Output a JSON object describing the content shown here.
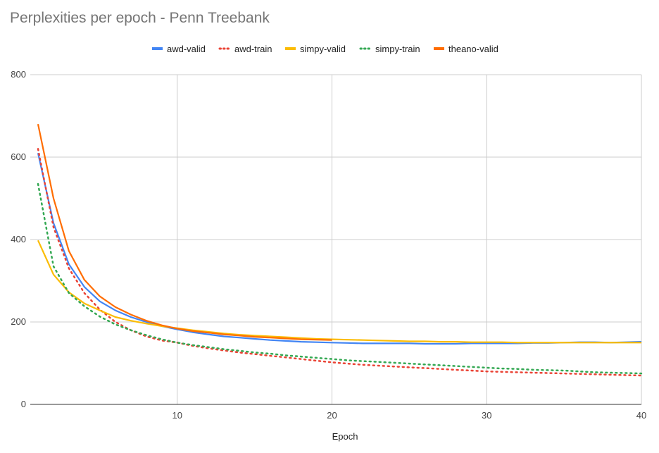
{
  "chart_data": {
    "type": "line",
    "title": "Perplexities per epoch - Penn Treebank",
    "xlabel": "Epoch",
    "ylabel": "",
    "xlim": [
      0.5,
      40
    ],
    "ylim": [
      0,
      800
    ],
    "x_ticks": [
      10,
      20,
      30,
      40
    ],
    "y_ticks": [
      0,
      200,
      400,
      600,
      800
    ],
    "grid": true,
    "legend": "top",
    "series": [
      {
        "name": "awd-valid",
        "style": "solid",
        "color": "#4285f4",
        "x": [
          1,
          2,
          3,
          4,
          5,
          6,
          7,
          8,
          9,
          10,
          11,
          12,
          13,
          14,
          15,
          16,
          17,
          18,
          19,
          20,
          21,
          22,
          23,
          24,
          25,
          26,
          27,
          28,
          29,
          30,
          31,
          32,
          33,
          34,
          35,
          36,
          37,
          38,
          39,
          40
        ],
        "y": [
          610,
          440,
          340,
          285,
          250,
          228,
          212,
          200,
          190,
          182,
          175,
          170,
          165,
          162,
          159,
          156,
          154,
          152,
          151,
          150,
          149,
          148,
          148,
          148,
          148,
          147,
          147,
          147,
          148,
          148,
          148,
          148,
          149,
          149,
          150,
          151,
          151,
          150,
          151,
          152
        ]
      },
      {
        "name": "awd-train",
        "style": "dotted",
        "color": "#ea4335",
        "x": [
          1,
          2,
          3,
          4,
          5,
          6,
          7,
          8,
          9,
          10,
          11,
          12,
          13,
          14,
          15,
          16,
          17,
          18,
          19,
          20,
          21,
          22,
          23,
          24,
          25,
          26,
          27,
          28,
          29,
          30,
          31,
          32,
          33,
          34,
          35,
          36,
          37,
          38,
          39,
          40
        ],
        "y": [
          620,
          430,
          330,
          270,
          230,
          200,
          180,
          165,
          155,
          150,
          142,
          136,
          131,
          126,
          122,
          118,
          114,
          110,
          106,
          102,
          99,
          96,
          94,
          92,
          90,
          88,
          86,
          84,
          82,
          80,
          79,
          78,
          77,
          76,
          75,
          74,
          73,
          72,
          71,
          70
        ]
      },
      {
        "name": "simpy-valid",
        "style": "solid",
        "color": "#fbbc04",
        "x": [
          1,
          2,
          3,
          4,
          5,
          6,
          7,
          8,
          9,
          10,
          11,
          12,
          13,
          14,
          15,
          16,
          17,
          18,
          19,
          20,
          21,
          22,
          23,
          24,
          25,
          26,
          27,
          28,
          29,
          30,
          31,
          32,
          33,
          34,
          35,
          36,
          37,
          38,
          39,
          40
        ],
        "y": [
          398,
          315,
          272,
          245,
          228,
          212,
          203,
          196,
          190,
          185,
          180,
          176,
          172,
          169,
          167,
          165,
          163,
          161,
          159,
          158,
          157,
          156,
          155,
          154,
          153,
          153,
          152,
          152,
          151,
          151,
          151,
          150,
          150,
          150,
          150,
          150,
          150,
          150,
          150,
          150
        ]
      },
      {
        "name": "simpy-train",
        "style": "dotted",
        "color": "#34a853",
        "x": [
          1,
          2,
          3,
          4,
          5,
          6,
          7,
          8,
          9,
          10,
          11,
          12,
          13,
          14,
          15,
          16,
          17,
          18,
          19,
          20,
          21,
          22,
          23,
          24,
          25,
          26,
          27,
          28,
          29,
          30,
          31,
          32,
          33,
          34,
          35,
          36,
          37,
          38,
          39,
          40
        ],
        "y": [
          535,
          335,
          270,
          238,
          213,
          194,
          180,
          168,
          158,
          150,
          144,
          139,
          134,
          130,
          126,
          123,
          119,
          116,
          113,
          110,
          107,
          105,
          103,
          101,
          99,
          97,
          95,
          93,
          91,
          89,
          87,
          86,
          84,
          83,
          82,
          80,
          78,
          77,
          76,
          75
        ]
      },
      {
        "name": "theano-valid",
        "style": "solid",
        "color": "#ff6d01",
        "x": [
          1,
          2,
          3,
          4,
          5,
          6,
          7,
          8,
          9,
          10,
          11,
          12,
          13,
          14,
          15,
          16,
          17,
          18,
          19,
          20
        ],
        "y": [
          680,
          500,
          372,
          302,
          262,
          236,
          218,
          203,
          192,
          184,
          178,
          174,
          170,
          167,
          164,
          162,
          160,
          158,
          157,
          156
        ]
      }
    ]
  }
}
